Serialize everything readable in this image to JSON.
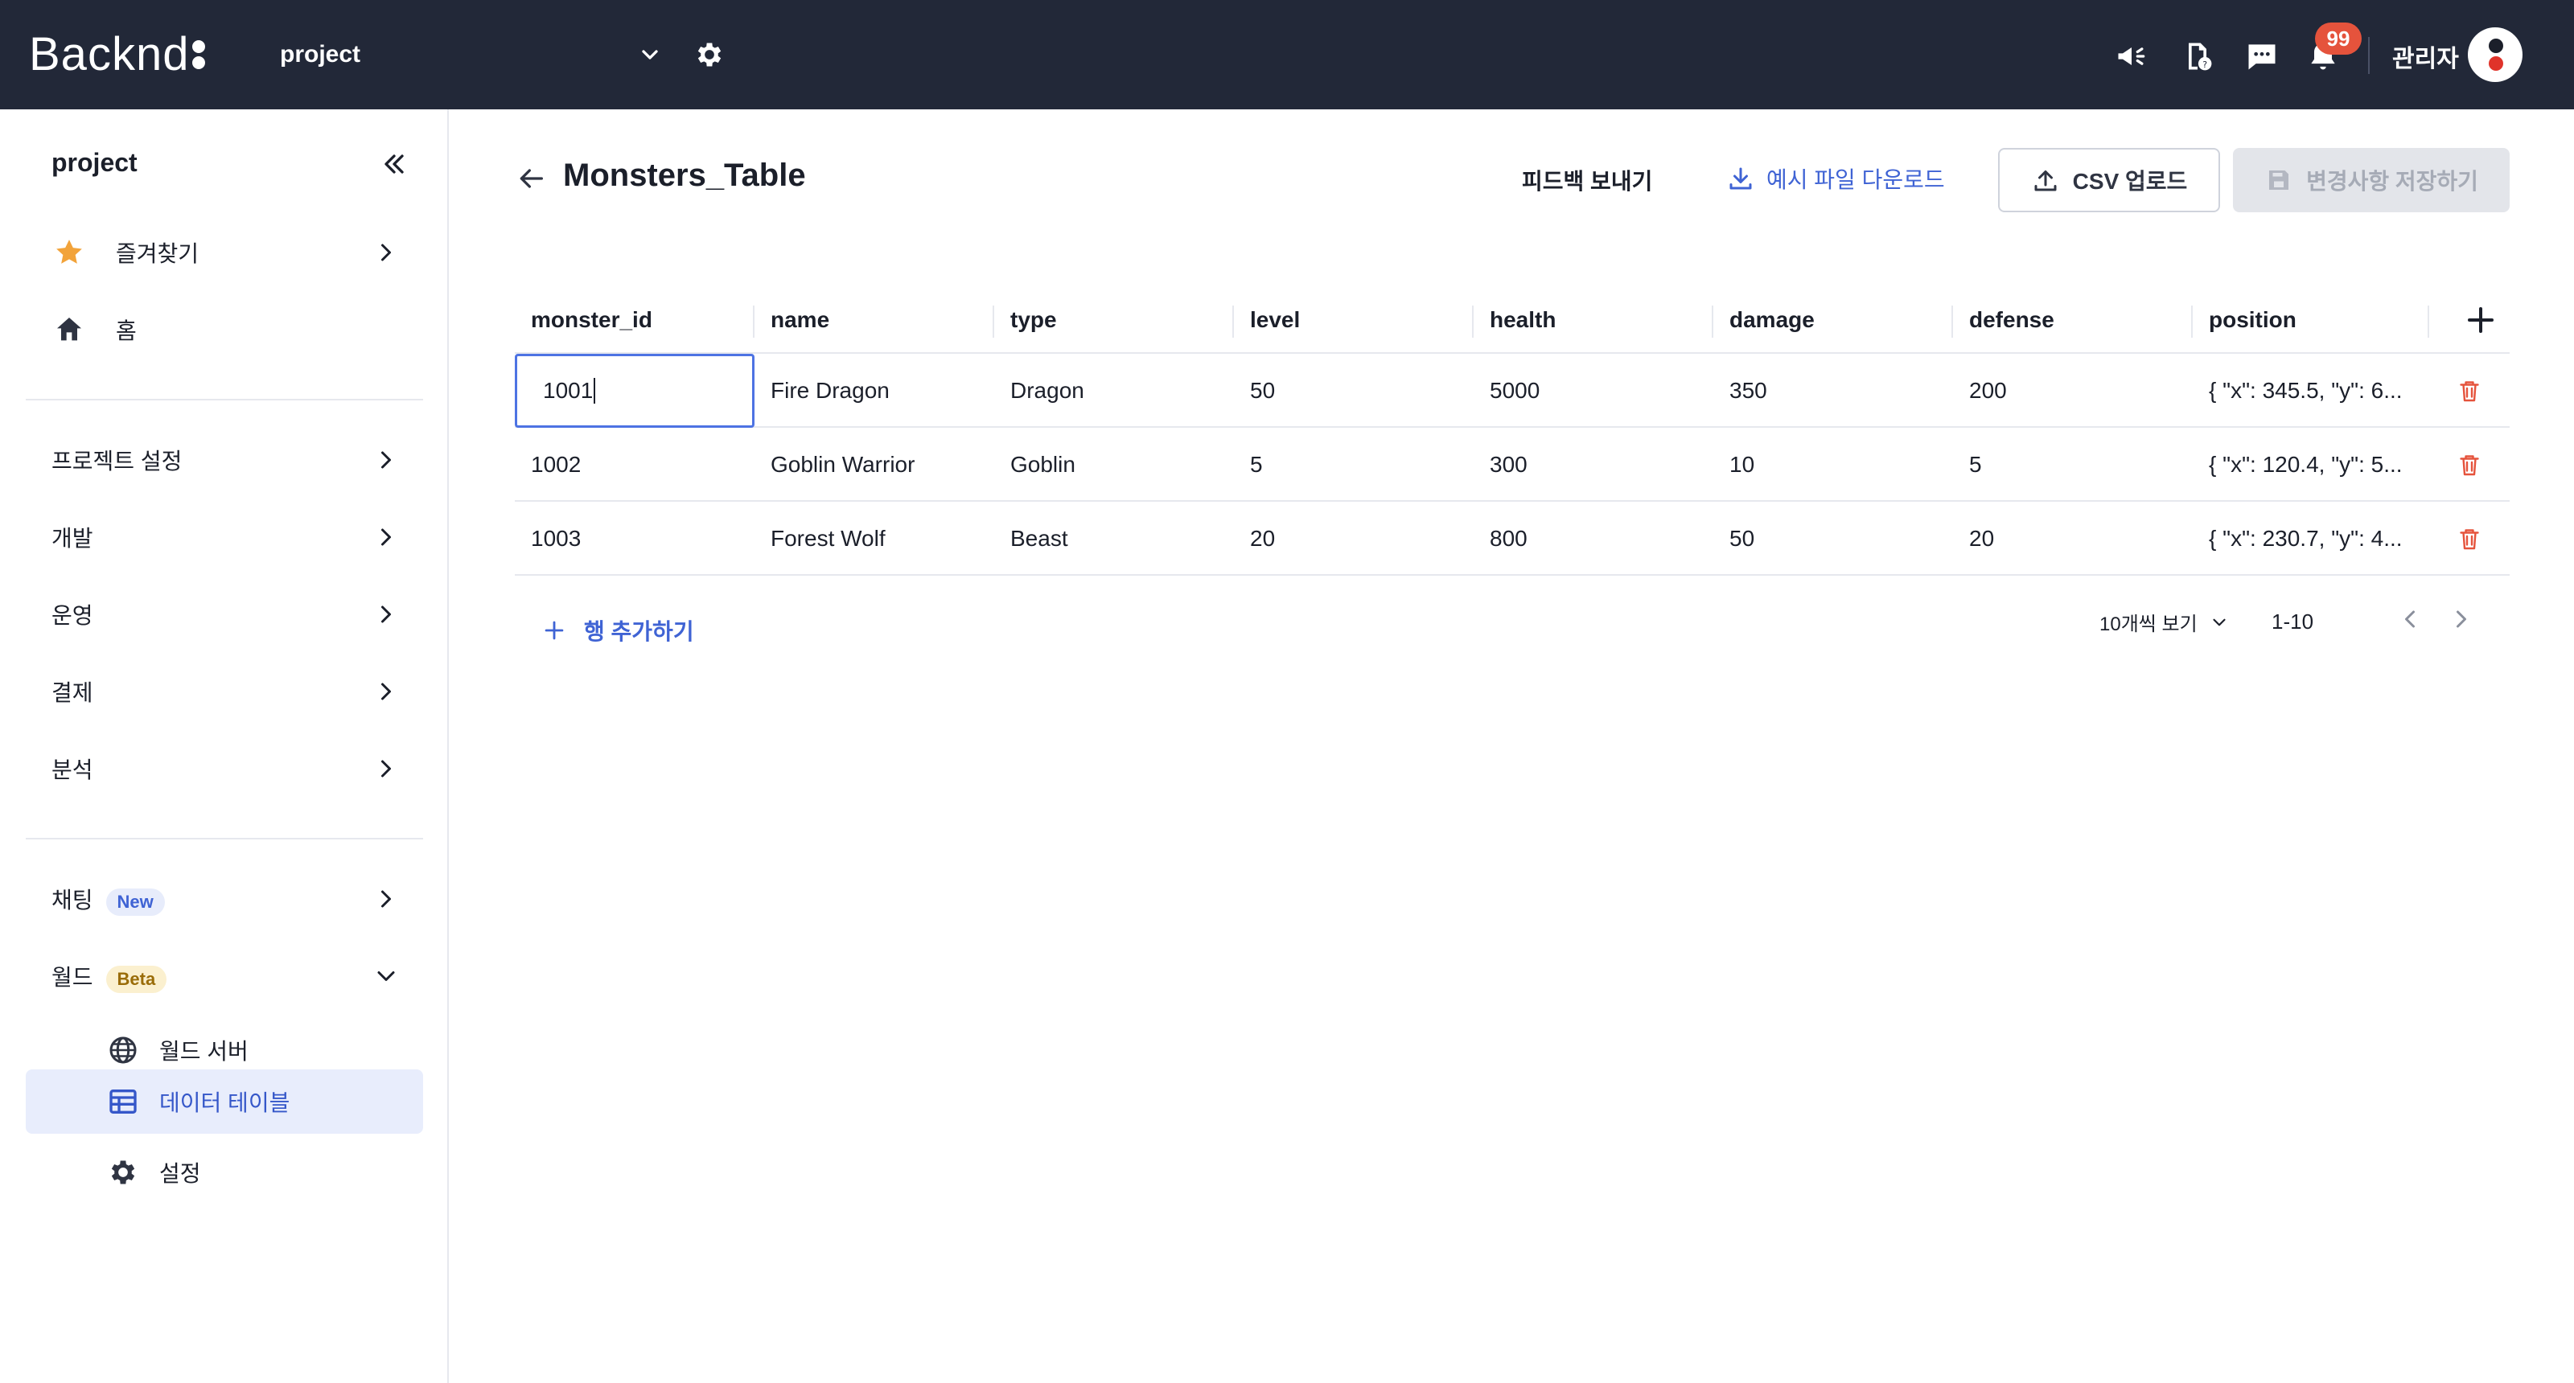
{
  "topbar": {
    "brand": "Backnd",
    "project_select_value": "project",
    "notification_count": "99",
    "admin_name": "관리자"
  },
  "sidebar": {
    "title": "project",
    "favorites": "즐겨찾기",
    "home": "홈",
    "project_settings": "프로젝트 설정",
    "development": "개발",
    "operation": "운영",
    "payment": "결제",
    "analytics": "분석",
    "chatting": "채팅",
    "chatting_tag": "New",
    "world": "월드",
    "world_tag": "Beta",
    "world_server": "월드 서버",
    "data_table": "데이터 테이블",
    "settings": "설정"
  },
  "page": {
    "title": "Monsters_Table",
    "feedback": "피드백 보내기",
    "download_sample": "예시 파일 다운로드",
    "csv_upload": "CSV 업로드",
    "save_changes": "변경사항 저장하기"
  },
  "table": {
    "columns": [
      "monster_id",
      "name",
      "type",
      "level",
      "health",
      "damage",
      "defense",
      "position"
    ],
    "rows": [
      [
        "1001",
        "Fire Dragon",
        "Dragon",
        "50",
        "5000",
        "350",
        "200",
        "{ \"x\": 345.5, \"y\": 6..."
      ],
      [
        "1002",
        "Goblin Warrior",
        "Goblin",
        "5",
        "300",
        "10",
        "5",
        "{ \"x\": 120.4, \"y\": 5..."
      ],
      [
        "1003",
        "Forest Wolf",
        "Beast",
        "20",
        "800",
        "50",
        "20",
        "{ \"x\": 230.7, \"y\": 4..."
      ]
    ],
    "add_row": "행 추가하기",
    "page_size": "10개씩 보기",
    "page_range": "1-10"
  },
  "colors": {
    "topbar_bg": "#222838",
    "accent": "#3f63d4",
    "badge": "#e5533c",
    "delete_icon": "#e5533c"
  }
}
